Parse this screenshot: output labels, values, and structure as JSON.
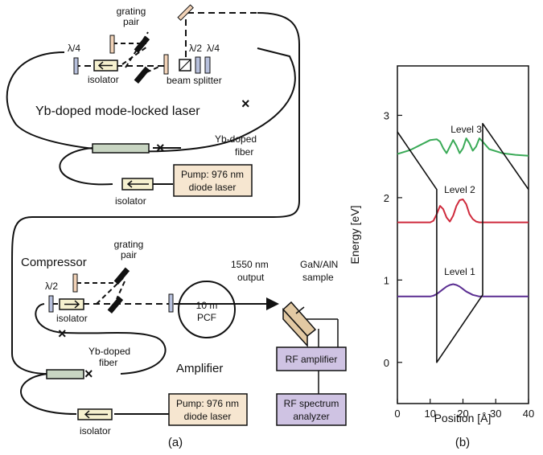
{
  "panel_a": {
    "caption": "(a)",
    "laser": {
      "title": "Yb-doped mode-locked laser",
      "grating_pair": [
        "grating",
        "pair"
      ],
      "lambda_quarter_left": "λ/4",
      "isolator_top": "isolator",
      "lambda_half": "λ/2",
      "lambda_quarter_right": "λ/4",
      "beam_splitter": "beam splitter",
      "fiber": [
        "Yb-doped",
        "fiber"
      ],
      "pump": [
        "Pump: 976 nm",
        "diode laser"
      ],
      "isolator_bottom": "isolator"
    },
    "amp": {
      "compressor": "Compressor",
      "grating_pair": [
        "grating",
        "pair"
      ],
      "output": [
        "1550 nm",
        "output"
      ],
      "sample": [
        "GaN/AlN",
        "sample"
      ],
      "lambda_half": "λ/2",
      "isolator_top": "isolator",
      "pcf": [
        "10 m",
        "PCF"
      ],
      "fiber": [
        "Yb-doped",
        "fiber"
      ],
      "amplifier": "Amplifier",
      "rf_amplifier": "RF amplifier",
      "rf_spectrum": [
        "RF spectrum",
        "analyzer"
      ],
      "pump": [
        "Pump: 976 nm",
        "diode laser"
      ],
      "isolator_bottom": "isolator"
    },
    "colors": {
      "pump_box": "#f6e6d0",
      "rf_box": "#cfc3e3",
      "fiber_body": "#c8d5c2",
      "waveplate": "#b7c0dc",
      "isolator": "#f6f1cf",
      "mirror": "#f2d3b8",
      "sample": "#e2c9a3"
    }
  },
  "panel_b": {
    "caption": "(b)",
    "level_labels": [
      "Level 3",
      "Level 2",
      "Level 1"
    ]
  },
  "chart_data": {
    "type": "line",
    "xlabel": "Position [Å]",
    "ylabel": "Energy [eV]",
    "xlim": [
      0,
      40
    ],
    "ylim": [
      -0.5,
      3.6
    ],
    "xticks": [
      "0",
      "10",
      "20",
      "30",
      "40"
    ],
    "yticks": [
      "0",
      "1",
      "2",
      "3"
    ],
    "series": [
      {
        "name": "Level 1",
        "color": "#5a2d91",
        "x": [
          0,
          10,
          11,
          12,
          13,
          14,
          15,
          16,
          17,
          18,
          19,
          20,
          21,
          22,
          23,
          24,
          25,
          26,
          30,
          40
        ],
        "y": [
          0.8,
          0.8,
          0.81,
          0.83,
          0.86,
          0.89,
          0.92,
          0.94,
          0.95,
          0.94,
          0.92,
          0.89,
          0.86,
          0.84,
          0.82,
          0.81,
          0.8,
          0.8,
          0.8,
          0.8
        ]
      },
      {
        "name": "Level 2",
        "color": "#cf2a3c",
        "x": [
          0,
          10,
          11,
          12,
          13,
          14,
          15,
          16,
          17,
          18,
          19,
          20,
          21,
          22,
          23,
          24,
          25,
          26,
          27,
          30,
          40
        ],
        "y": [
          1.7,
          1.7,
          1.72,
          1.8,
          1.9,
          1.86,
          1.76,
          1.71,
          1.78,
          1.9,
          1.97,
          1.98,
          1.92,
          1.8,
          1.74,
          1.71,
          1.7,
          1.7,
          1.7,
          1.7,
          1.7
        ]
      },
      {
        "name": "Level 3",
        "color": "#3aaa57",
        "x": [
          0,
          4,
          8,
          10,
          12,
          13,
          14,
          15,
          16,
          17,
          18,
          19,
          20,
          21,
          22,
          23,
          24,
          25,
          26,
          28,
          32,
          36,
          40
        ],
        "y": [
          2.53,
          2.58,
          2.66,
          2.7,
          2.71,
          2.68,
          2.6,
          2.54,
          2.62,
          2.7,
          2.63,
          2.54,
          2.6,
          2.72,
          2.66,
          2.57,
          2.62,
          2.72,
          2.68,
          2.59,
          2.54,
          2.52,
          2.51
        ]
      },
      {
        "name": "",
        "color": "#111111",
        "x": [
          0,
          12,
          12,
          26,
          26,
          40
        ],
        "y": [
          2.8,
          2.1,
          0,
          0.82,
          2.9,
          2.1
        ]
      }
    ]
  }
}
